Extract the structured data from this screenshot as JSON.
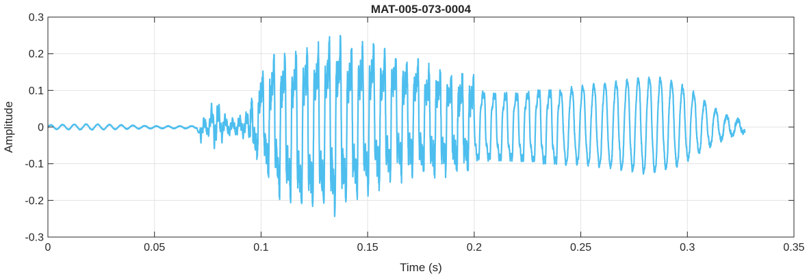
{
  "chart_data": {
    "type": "line",
    "title": "MAT-005-073-0004",
    "xlabel": "Time (s)",
    "ylabel": "Amplitude",
    "xlim": [
      0,
      0.35
    ],
    "ylim": [
      -0.3,
      0.3
    ],
    "xticks": [
      0,
      0.05,
      0.1,
      0.15,
      0.2,
      0.25,
      0.3,
      0.35
    ],
    "xtick_labels": [
      "0",
      "0.05",
      "0.1",
      "0.15",
      "0.2",
      "0.25",
      "0.3",
      "0.35"
    ],
    "yticks": [
      -0.3,
      -0.2,
      -0.1,
      0,
      0.1,
      0.2,
      0.3
    ],
    "ytick_labels": [
      "-0.3",
      "-0.2",
      "-0.1",
      "0",
      "0.1",
      "0.2",
      "0.3"
    ],
    "grid": true,
    "line_color": "#4DBEEE",
    "series": [
      {
        "x_range": [
          0,
          0.327
        ],
        "envelope": {
          "t": [
            0,
            0.02,
            0.05,
            0.07,
            0.0715,
            0.075,
            0.078,
            0.085,
            0.09,
            0.095,
            0.1,
            0.108,
            0.115,
            0.125,
            0.13,
            0.135,
            0.14,
            0.15,
            0.16,
            0.17,
            0.18,
            0.19,
            0.2,
            0.21,
            0.22,
            0.23,
            0.24,
            0.25,
            0.26,
            0.27,
            0.275,
            0.28,
            0.285,
            0.29,
            0.295,
            0.3,
            0.305,
            0.31,
            0.315,
            0.32,
            0.325,
            0.327
          ],
          "pos": [
            0.006,
            0.009,
            0.003,
            0.003,
            0.035,
            0.02,
            0.09,
            0.02,
            0.03,
            0.05,
            0.13,
            0.19,
            0.19,
            0.21,
            0.22,
            0.24,
            0.21,
            0.21,
            0.19,
            0.17,
            0.15,
            0.13,
            0.12,
            0.11,
            0.11,
            0.12,
            0.12,
            0.13,
            0.14,
            0.15,
            0.16,
            0.16,
            0.16,
            0.155,
            0.14,
            0.125,
            0.1,
            0.07,
            0.05,
            0.03,
            0.02,
            0.01
          ],
          "neg": [
            -0.006,
            -0.008,
            -0.004,
            -0.004,
            -0.04,
            -0.02,
            -0.06,
            -0.02,
            -0.025,
            -0.04,
            -0.09,
            -0.17,
            -0.2,
            -0.21,
            -0.21,
            -0.22,
            -0.2,
            -0.17,
            -0.14,
            -0.12,
            -0.12,
            -0.11,
            -0.11,
            -0.11,
            -0.11,
            -0.12,
            -0.12,
            -0.12,
            -0.13,
            -0.14,
            -0.145,
            -0.15,
            -0.15,
            -0.14,
            -0.13,
            -0.11,
            -0.09,
            -0.065,
            -0.045,
            -0.03,
            -0.02,
            -0.015
          ]
        },
        "pitch_period_s": 0.0052,
        "onset_s": 0.0715,
        "voiced_start_s": 0.095
      }
    ]
  }
}
